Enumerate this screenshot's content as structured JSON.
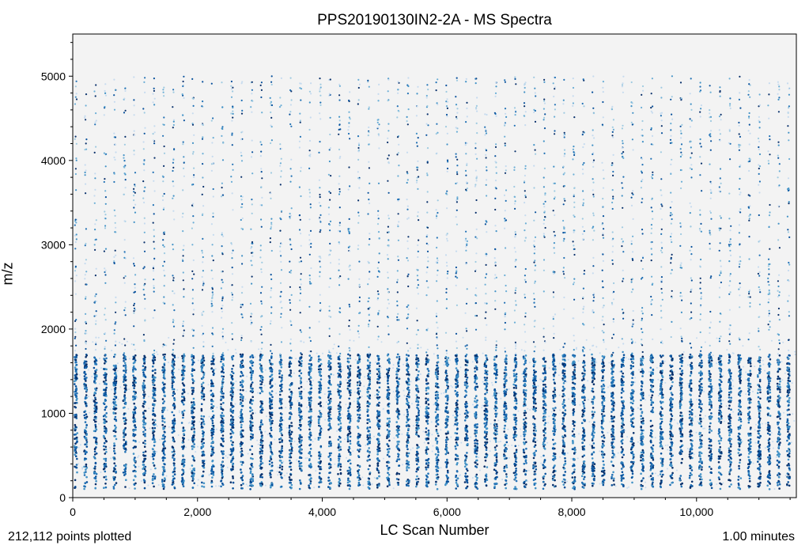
{
  "chart_data": {
    "type": "scatter",
    "title": "PPS20190130IN2-2A - MS Spectra",
    "xlabel": "LC Scan Number",
    "ylabel": "m/z",
    "xlim": [
      0,
      11600
    ],
    "ylim": [
      0,
      5500
    ],
    "x_ticks": [
      0,
      2000,
      4000,
      6000,
      8000,
      10000
    ],
    "x_tick_labels": [
      "0",
      "2,000",
      "4,000",
      "6,000",
      "8,000",
      "10,000"
    ],
    "y_ticks": [
      0,
      1000,
      2000,
      3000,
      4000,
      5000
    ],
    "y_tick_labels": [
      "0",
      "1000",
      "2000",
      "3000",
      "4000",
      "5000"
    ],
    "scan_columns": {
      "count": 74,
      "x_first": 50,
      "x_spacing": 156.5,
      "dense_mz_range": [
        100,
        1700
      ],
      "sparse_mz_range": [
        1700,
        5000
      ]
    },
    "colormap": [
      "#c6dbef",
      "#9ecae1",
      "#6baed6",
      "#4292c6",
      "#2171b5",
      "#08519c",
      "#08306b"
    ],
    "plot_background": "#f3f3f3",
    "points_plotted": "212,112 points plotted",
    "time_label": "1.00 minutes"
  }
}
